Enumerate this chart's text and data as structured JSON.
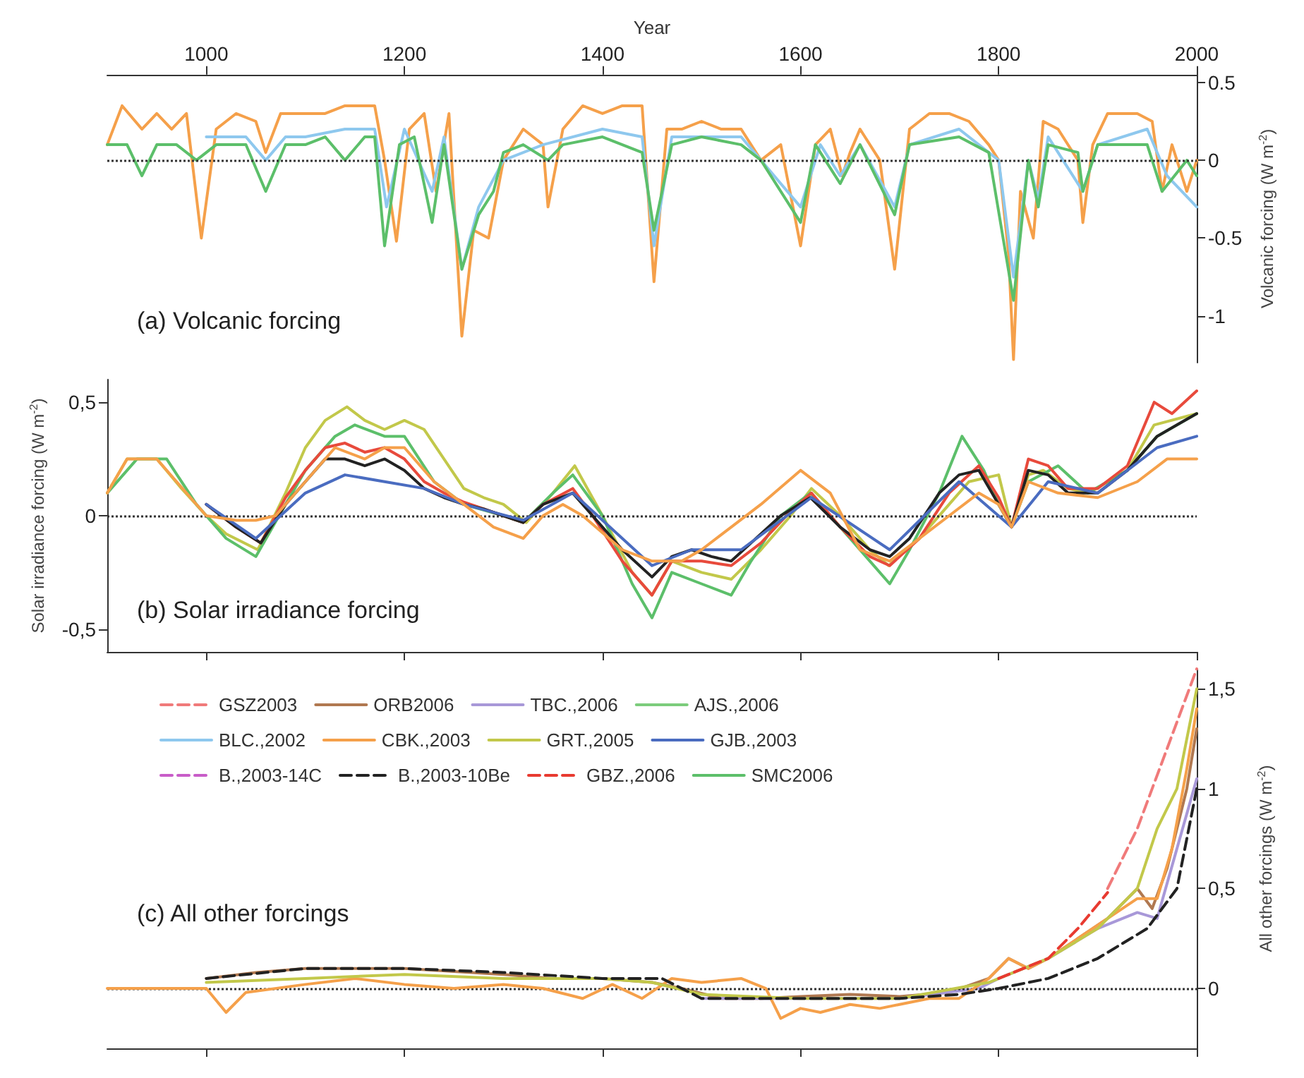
{
  "chart_data": [
    {
      "type": "line",
      "title": "(a) Volcanic forcing",
      "xlabel": "Year",
      "y2label": "Volcanic forcing (W m$^{-2}$)",
      "xlim": [
        900,
        2000
      ],
      "xticks": [
        1000,
        1200,
        1400,
        1600,
        1800,
        2000
      ],
      "y2lim": [
        -1.3,
        0.55
      ],
      "y2ticks": [
        0.5,
        0,
        -0.5,
        -1
      ],
      "marker": "none",
      "line_style": "solid",
      "grid": false,
      "legend": false,
      "ref_lines": [
        {
          "axis": "y2",
          "value": 0,
          "color": "#333333",
          "line_style": "dotted"
        }
      ],
      "series": [
        {
          "color": "#f5a04a",
          "axis": "y2",
          "x": [
            900,
            915,
            935,
            950,
            965,
            980,
            995,
            1010,
            1030,
            1050,
            1060,
            1075,
            1100,
            1120,
            1140,
            1170,
            1180,
            1192,
            1205,
            1220,
            1232,
            1245,
            1258,
            1270,
            1285,
            1300,
            1320,
            1340,
            1345,
            1360,
            1380,
            1400,
            1420,
            1440,
            1452,
            1465,
            1480,
            1500,
            1520,
            1540,
            1560,
            1580,
            1600,
            1615,
            1630,
            1642,
            1650,
            1660,
            1680,
            1695,
            1710,
            1730,
            1750,
            1770,
            1790,
            1800,
            1810,
            1815,
            1822,
            1835,
            1845,
            1860,
            1880,
            1885,
            1895,
            1910,
            1940,
            1955,
            1965,
            1975,
            1990,
            2000
          ],
          "values": [
            0.1,
            0.35,
            0.2,
            0.3,
            0.2,
            0.3,
            -0.5,
            0.2,
            0.3,
            0.25,
            0.05,
            0.3,
            0.3,
            0.3,
            0.35,
            0.35,
            0.0,
            -0.52,
            0.2,
            0.3,
            -0.2,
            0.3,
            -1.13,
            -0.45,
            -0.5,
            0.0,
            0.2,
            0.1,
            -0.3,
            0.2,
            0.35,
            0.3,
            0.35,
            0.35,
            -0.78,
            0.2,
            0.2,
            0.25,
            0.2,
            0.2,
            0.0,
            0.1,
            -0.55,
            0.1,
            0.2,
            -0.1,
            0.05,
            0.2,
            0.0,
            -0.7,
            0.2,
            0.3,
            0.3,
            0.25,
            0.1,
            0.0,
            -0.6,
            -1.28,
            -0.2,
            -0.5,
            0.25,
            0.2,
            0.0,
            -0.4,
            0.1,
            0.3,
            0.3,
            0.25,
            -0.2,
            0.1,
            -0.2,
            0.0
          ]
        },
        {
          "color": "#8ec8ee",
          "axis": "y2",
          "x": [
            1000,
            1040,
            1060,
            1080,
            1100,
            1140,
            1170,
            1182,
            1200,
            1228,
            1240,
            1258,
            1275,
            1300,
            1340,
            1400,
            1440,
            1452,
            1470,
            1540,
            1560,
            1600,
            1620,
            1640,
            1660,
            1695,
            1710,
            1760,
            1800,
            1815,
            1830,
            1840,
            1850,
            1885,
            1900,
            1950,
            1970,
            2000
          ],
          "values": [
            0.15,
            0.15,
            0.0,
            0.15,
            0.15,
            0.2,
            0.2,
            -0.3,
            0.2,
            -0.2,
            0.15,
            -0.7,
            -0.3,
            0.0,
            0.1,
            0.2,
            0.15,
            -0.55,
            0.15,
            0.15,
            0.0,
            -0.3,
            0.1,
            -0.1,
            0.1,
            -0.3,
            0.1,
            0.2,
            0.0,
            -0.75,
            0.0,
            -0.25,
            0.15,
            -0.2,
            0.1,
            0.2,
            -0.1,
            -0.3
          ]
        },
        {
          "color": "#5cbf6a",
          "axis": "y2",
          "x": [
            900,
            920,
            935,
            950,
            970,
            990,
            1010,
            1040,
            1060,
            1080,
            1100,
            1120,
            1140,
            1160,
            1170,
            1180,
            1195,
            1210,
            1228,
            1240,
            1258,
            1275,
            1290,
            1300,
            1320,
            1345,
            1360,
            1400,
            1440,
            1452,
            1470,
            1500,
            1540,
            1560,
            1600,
            1615,
            1640,
            1660,
            1695,
            1710,
            1760,
            1790,
            1815,
            1830,
            1840,
            1850,
            1880,
            1885,
            1900,
            1950,
            1965,
            1990,
            2000
          ],
          "values": [
            0.1,
            0.1,
            -0.1,
            0.1,
            0.1,
            0.0,
            0.1,
            0.1,
            -0.2,
            0.1,
            0.1,
            0.15,
            0.0,
            0.15,
            0.15,
            -0.55,
            0.1,
            0.15,
            -0.4,
            0.1,
            -0.7,
            -0.35,
            -0.2,
            0.05,
            0.1,
            0.0,
            0.1,
            0.15,
            0.05,
            -0.45,
            0.1,
            0.15,
            0.1,
            0.0,
            -0.4,
            0.1,
            -0.15,
            0.1,
            -0.35,
            0.1,
            0.15,
            0.05,
            -0.9,
            0.0,
            -0.3,
            0.1,
            0.05,
            -0.2,
            0.1,
            0.1,
            -0.2,
            0.0,
            -0.1
          ]
        }
      ]
    },
    {
      "type": "line",
      "title": "(b) Solar irradiance forcing",
      "ylabel": "Solar irradiance forcing (W m$^{-2}$)",
      "xlim": [
        900,
        2000
      ],
      "xticks": [
        1000,
        1200,
        1400,
        1600,
        1800,
        2000
      ],
      "ylim": [
        -0.6,
        0.6
      ],
      "yticks": [
        {
          "value": 0.5,
          "label": "0,5"
        },
        0,
        {
          "value": -0.5,
          "label": "-0,5"
        }
      ],
      "tick_labels": "y",
      "marker": "none",
      "line_style": "solid",
      "grid": false,
      "legend": false,
      "ref_lines": [
        {
          "axis": "y",
          "value": 0,
          "color": "#333333",
          "line_style": "dotted"
        }
      ],
      "series": [
        {
          "color": "#c2c84a",
          "x": [
            900,
            920,
            950,
            975,
            1000,
            1020,
            1052,
            1080,
            1100,
            1120,
            1142,
            1160,
            1180,
            1200,
            1220,
            1240,
            1260,
            1280,
            1300,
            1323,
            1350,
            1372,
            1400,
            1430,
            1450,
            1470,
            1500,
            1530,
            1560,
            1590,
            1611,
            1640,
            1670,
            1689,
            1720,
            1750,
            1770,
            1800,
            1813,
            1830,
            1845,
            1870,
            1891,
            1930,
            1957,
            2000
          ],
          "values": [
            0.1,
            0.25,
            0.25,
            0.12,
            0.0,
            -0.08,
            -0.15,
            0.1,
            0.3,
            0.42,
            0.48,
            0.42,
            0.38,
            0.42,
            0.38,
            0.25,
            0.12,
            0.08,
            0.05,
            -0.03,
            0.1,
            0.22,
            0.0,
            -0.25,
            -0.35,
            -0.2,
            -0.25,
            -0.28,
            -0.15,
            0.0,
            0.12,
            0.0,
            -0.15,
            -0.22,
            -0.1,
            0.05,
            0.15,
            0.18,
            -0.05,
            0.18,
            0.2,
            0.12,
            0.1,
            0.2,
            0.4,
            0.45
          ]
        },
        {
          "color": "#5cbf6a",
          "x": [
            900,
            930,
            960,
            990,
            1020,
            1050,
            1080,
            1100,
            1130,
            1150,
            1180,
            1200,
            1230,
            1260,
            1300,
            1320,
            1350,
            1370,
            1400,
            1430,
            1450,
            1470,
            1500,
            1530,
            1550,
            1580,
            1610,
            1640,
            1670,
            1690,
            1710,
            1740,
            1763,
            1785,
            1800,
            1813,
            1830,
            1860,
            1890,
            1930,
            1960,
            2000
          ],
          "values": [
            0.1,
            0.25,
            0.25,
            0.05,
            -0.1,
            -0.18,
            0.05,
            0.2,
            0.35,
            0.4,
            0.35,
            0.35,
            0.15,
            0.05,
            0.0,
            -0.03,
            0.1,
            0.18,
            0.0,
            -0.3,
            -0.45,
            -0.25,
            -0.3,
            -0.35,
            -0.2,
            0.0,
            0.1,
            -0.05,
            -0.2,
            -0.3,
            -0.15,
            0.1,
            0.35,
            0.2,
            0.05,
            -0.05,
            0.15,
            0.22,
            0.1,
            0.2,
            0.35,
            0.45
          ]
        },
        {
          "color": "#e84a3c",
          "x": [
            1000,
            1030,
            1055,
            1080,
            1100,
            1120,
            1140,
            1160,
            1180,
            1200,
            1220,
            1240,
            1260,
            1300,
            1320,
            1340,
            1370,
            1390,
            1420,
            1450,
            1470,
            1500,
            1530,
            1560,
            1590,
            1611,
            1640,
            1670,
            1690,
            1720,
            1750,
            1780,
            1800,
            1813,
            1830,
            1850,
            1870,
            1900,
            1930,
            1957,
            1975,
            2000
          ],
          "values": [
            0.05,
            -0.05,
            -0.12,
            0.08,
            0.2,
            0.3,
            0.32,
            0.28,
            0.3,
            0.25,
            0.15,
            0.1,
            0.06,
            0.0,
            -0.03,
            0.05,
            0.12,
            0.0,
            -0.2,
            -0.35,
            -0.2,
            -0.2,
            -0.22,
            -0.12,
            0.02,
            0.1,
            -0.05,
            -0.18,
            -0.22,
            -0.1,
            0.1,
            0.22,
            0.08,
            -0.05,
            0.25,
            0.22,
            0.12,
            0.12,
            0.22,
            0.5,
            0.45,
            0.55
          ]
        },
        {
          "color": "#222222",
          "x": [
            1000,
            1030,
            1055,
            1080,
            1100,
            1120,
            1140,
            1160,
            1180,
            1200,
            1220,
            1240,
            1260,
            1280,
            1300,
            1320,
            1340,
            1370,
            1390,
            1420,
            1450,
            1470,
            1490,
            1510,
            1530,
            1550,
            1580,
            1610,
            1640,
            1670,
            1690,
            1710,
            1740,
            1760,
            1780,
            1800,
            1813,
            1830,
            1850,
            1870,
            1900,
            1930,
            1960,
            1980,
            2000
          ],
          "values": [
            0.05,
            -0.05,
            -0.12,
            0.05,
            0.15,
            0.25,
            0.25,
            0.22,
            0.25,
            0.2,
            0.12,
            0.08,
            0.05,
            0.03,
            0.0,
            -0.03,
            0.05,
            0.1,
            0.0,
            -0.15,
            -0.27,
            -0.18,
            -0.15,
            -0.18,
            -0.2,
            -0.12,
            0.0,
            0.08,
            -0.05,
            -0.15,
            -0.18,
            -0.1,
            0.1,
            0.18,
            0.2,
            0.05,
            -0.05,
            0.2,
            0.18,
            0.1,
            0.1,
            0.2,
            0.35,
            0.4,
            0.45
          ]
        },
        {
          "color": "#4a6cc0",
          "x": [
            1000,
            1050,
            1100,
            1140,
            1180,
            1220,
            1260,
            1320,
            1370,
            1450,
            1490,
            1540,
            1611,
            1690,
            1760,
            1813,
            1850,
            1900,
            1960,
            2000
          ],
          "values": [
            0.05,
            -0.1,
            0.1,
            0.18,
            0.15,
            0.12,
            0.05,
            -0.02,
            0.1,
            -0.22,
            -0.15,
            -0.15,
            0.08,
            -0.15,
            0.15,
            -0.05,
            0.15,
            0.1,
            0.3,
            0.35
          ]
        },
        {
          "color": "#f5a04a",
          "x": [
            900,
            920,
            950,
            970,
            1000,
            1030,
            1050,
            1070,
            1100,
            1130,
            1160,
            1180,
            1200,
            1230,
            1260,
            1290,
            1320,
            1340,
            1360,
            1380,
            1420,
            1450,
            1480,
            1500,
            1530,
            1560,
            1600,
            1630,
            1660,
            1690,
            1720,
            1750,
            1780,
            1800,
            1813,
            1830,
            1860,
            1900,
            1940,
            1970,
            2000
          ],
          "values": [
            0.1,
            0.25,
            0.25,
            0.15,
            0.0,
            -0.02,
            -0.02,
            0.0,
            0.15,
            0.3,
            0.25,
            0.3,
            0.3,
            0.15,
            0.05,
            -0.05,
            -0.1,
            0.0,
            0.05,
            0.0,
            -0.15,
            -0.2,
            -0.2,
            -0.15,
            -0.05,
            0.05,
            0.2,
            0.1,
            -0.15,
            -0.2,
            -0.1,
            0.0,
            0.1,
            0.05,
            -0.05,
            0.15,
            0.1,
            0.08,
            0.15,
            0.25,
            0.25
          ]
        }
      ]
    },
    {
      "type": "line",
      "title": "(c) All other forcings",
      "y2label": "All other forcings (W m$^{-2}$)",
      "xlim": [
        900,
        2000
      ],
      "xticks": [
        1000,
        1200,
        1400,
        1600,
        1800,
        2000
      ],
      "y2lim": [
        -0.3,
        1.6
      ],
      "y2ticks": [
        0,
        {
          "value": 0.5,
          "label": "0,5"
        },
        1,
        {
          "value": 1.5,
          "label": "1,5"
        }
      ],
      "tick_labels": "y",
      "marker": "none",
      "line_style": "solid",
      "grid": false,
      "legend": "top left",
      "ref_lines": [
        {
          "axis": "y2",
          "value": 0,
          "color": "#333333",
          "line_style": "dotted"
        }
      ],
      "series": [
        {
          "name": "GSZ2003",
          "color": "#f07a7a",
          "axis": "y2",
          "line_style": "dashed",
          "x": [
            1910,
            1940,
            1970,
            2000
          ],
          "values": [
            0.5,
            0.8,
            1.2,
            1.6
          ]
        },
        {
          "name": "ORB2006",
          "color": "#b07850",
          "axis": "y2",
          "x": [
            1000,
            1050,
            1100,
            1200,
            1300,
            1350,
            1400,
            1450,
            1480,
            1520,
            1560,
            1600,
            1650,
            1700,
            1750,
            1790,
            1810,
            1830,
            1850,
            1880,
            1910,
            1940,
            1955,
            1970,
            1990,
            2000
          ],
          "values": [
            0.05,
            0.08,
            0.1,
            0.1,
            0.07,
            0.05,
            0.05,
            0.03,
            0.0,
            -0.05,
            -0.05,
            -0.04,
            -0.03,
            -0.04,
            -0.02,
            0.05,
            0.15,
            0.1,
            0.15,
            0.25,
            0.35,
            0.5,
            0.4,
            0.6,
            1.0,
            1.3
          ]
        },
        {
          "name": "TBC.,2006",
          "color": "#a898d8",
          "axis": "y2",
          "x": [
            1500,
            1570,
            1600,
            1700,
            1780,
            1800,
            1850,
            1900,
            1940,
            1960,
            1980,
            2000
          ],
          "values": [
            -0.05,
            -0.05,
            -0.05,
            -0.05,
            0.0,
            0.05,
            0.15,
            0.3,
            0.38,
            0.35,
            0.7,
            1.05
          ]
        },
        {
          "name": "AJS.,2006",
          "color": "#7ccc7c",
          "axis": "y2"
        },
        {
          "name": "BLC.,2002",
          "color": "#8ec8ee",
          "axis": "y2"
        },
        {
          "name": "CBK.,2003",
          "color": "#f5a04a",
          "axis": "y2",
          "x": [
            900,
            1000,
            1020,
            1040,
            1100,
            1150,
            1200,
            1250,
            1300,
            1340,
            1380,
            1410,
            1440,
            1470,
            1500,
            1540,
            1565,
            1580,
            1600,
            1620,
            1650,
            1680,
            1700,
            1730,
            1760,
            1790,
            1810,
            1830,
            1850,
            1880,
            1910,
            1940,
            1960,
            1975,
            1990,
            2000
          ],
          "values": [
            0,
            0,
            -0.12,
            -0.02,
            0.02,
            0.05,
            0.02,
            0.0,
            0.02,
            0.0,
            -0.05,
            0.02,
            -0.05,
            0.05,
            0.03,
            0.05,
            0.0,
            -0.15,
            -0.1,
            -0.12,
            -0.08,
            -0.1,
            -0.08,
            -0.05,
            -0.05,
            0.05,
            0.15,
            0.1,
            0.15,
            0.25,
            0.35,
            0.45,
            0.45,
            0.7,
            1.1,
            1.4
          ]
        },
        {
          "name": "GRT.,2005",
          "color": "#c2c84a",
          "axis": "y2",
          "x": [
            1000,
            1100,
            1200,
            1300,
            1400,
            1450,
            1500,
            1600,
            1700,
            1790,
            1850,
            1900,
            1940,
            1960,
            1980,
            2000
          ],
          "values": [
            0.03,
            0.05,
            0.07,
            0.05,
            0.05,
            0.03,
            -0.03,
            -0.05,
            -0.05,
            0.03,
            0.15,
            0.3,
            0.5,
            0.8,
            1.0,
            1.5
          ]
        },
        {
          "name": "GJB.,2003",
          "color": "#4a6cc0",
          "axis": "y2"
        },
        {
          "name": "B.,2003-14C",
          "color": "#c85cc8",
          "axis": "y2",
          "line_style": "dashed"
        },
        {
          "name": "B.,2003-10Be",
          "color": "#222222",
          "axis": "y2",
          "line_style": "dashed",
          "x": [
            1000,
            1100,
            1200,
            1300,
            1400,
            1460,
            1500,
            1600,
            1700,
            1760,
            1800,
            1850,
            1900,
            1950,
            1980,
            2000
          ],
          "values": [
            0.05,
            0.1,
            0.1,
            0.08,
            0.05,
            0.05,
            -0.05,
            -0.05,
            -0.05,
            -0.03,
            0.0,
            0.05,
            0.15,
            0.3,
            0.5,
            1.0
          ]
        },
        {
          "name": "GBZ.,2006",
          "color": "#e83a30",
          "axis": "y2",
          "line_style": "dashed",
          "x": [
            1800,
            1850,
            1880,
            1910
          ],
          "values": [
            0.05,
            0.15,
            0.3,
            0.48
          ]
        },
        {
          "name": "SMC2006",
          "color": "#5cbf6a",
          "axis": "y2"
        }
      ]
    }
  ]
}
